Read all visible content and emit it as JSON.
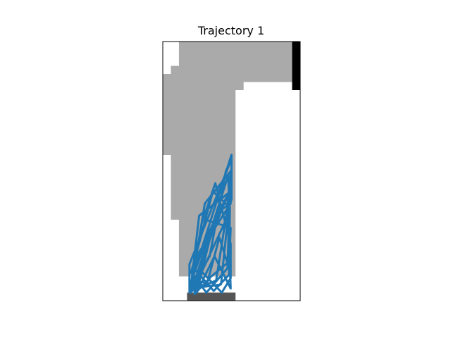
{
  "chart_data": {
    "type": "line",
    "title": "Trajectory 1",
    "xlabel": "",
    "ylabel": "",
    "xlim": [
      0,
      17
    ],
    "ylim": [
      0,
      32
    ],
    "axes_visible": false,
    "grid": false,
    "map": {
      "colors": {
        "free": "#ffffff",
        "visited": "#aaaaaa",
        "obstacle": "#000000",
        "start": "#555555"
      },
      "visited_cells": [
        [
          2.0,
          31.0,
          16.0,
          32.0
        ],
        [
          2.0,
          29.0,
          16.0,
          31.0
        ],
        [
          1.0,
          28.0,
          16.0,
          29.0
        ],
        [
          0.0,
          27.0,
          16.0,
          28.0
        ],
        [
          0.0,
          26.0,
          10.0,
          27.0
        ],
        [
          0.0,
          18.0,
          9.0,
          26.0
        ],
        [
          1.0,
          10.0,
          9.0,
          18.0
        ],
        [
          2.0,
          3.0,
          9.0,
          10.0
        ]
      ],
      "obstacle_cells": [
        [
          16.0,
          26.0,
          17.0,
          32.0
        ]
      ],
      "start_region": [
        3.0,
        0.0,
        9.0,
        1.0
      ]
    },
    "series": [
      {
        "color": "#1f77b4",
        "x": [
          3.3,
          4.2,
          8.5,
          8.5,
          7.6,
          4.0,
          3.5,
          8.1,
          8.4,
          6.0,
          3.9,
          5.4,
          8.4,
          6.6,
          3.4,
          4.5,
          8.4,
          7.2,
          3.5,
          5.2,
          8.4,
          8.0,
          5.4,
          3.5,
          6.2,
          8.3,
          8.2,
          6.3,
          3.7,
          5.3,
          8.4,
          8.2,
          7.0,
          5.5,
          3.6,
          4.8,
          6.5,
          8.4,
          8.4,
          7.3,
          4.6,
          3.4,
          5.7,
          8.0,
          8.4,
          6.4,
          4.2,
          6.6,
          8.4,
          4.5,
          3.3,
          3.3,
          8.5,
          7.8,
          5.8,
          3.4
        ],
        "y": [
          1.5,
          4.5,
          18.0,
          12.5,
          9.5,
          1.8,
          1.0,
          15.5,
          5.0,
          3.0,
          0.8,
          6.5,
          14.0,
          2.5,
          1.1,
          10.5,
          13.5,
          2.0,
          1.5,
          12.0,
          16.0,
          4.0,
          1.0,
          3.5,
          13.5,
          11.5,
          3.2,
          1.2,
          4.2,
          10.0,
          9.0,
          4.0,
          7.8,
          2.2,
          2.5,
          9.5,
          14.5,
          7.0,
          2.8,
          1.0,
          3.8,
          2.0,
          8.5,
          13.0,
          1.5,
          5.5,
          1.0,
          10.8,
          12.0,
          6.0,
          1.0,
          4.5,
          17.5,
          16.0,
          5.5,
          1.2
        ]
      }
    ]
  }
}
